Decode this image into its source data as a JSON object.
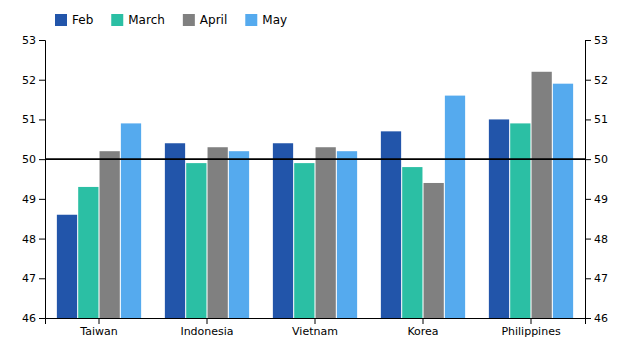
{
  "chart_data": {
    "type": "bar",
    "categories": [
      "Taiwan",
      "Indonesia",
      "Vietnam",
      "Korea",
      "Philippines"
    ],
    "series": [
      {
        "name": "Feb",
        "color": "#2255aa",
        "values": [
          48.6,
          50.4,
          50.4,
          50.7,
          51.0
        ]
      },
      {
        "name": "March",
        "color": "#2bbfa4",
        "values": [
          49.3,
          49.9,
          49.9,
          49.8,
          50.9
        ]
      },
      {
        "name": "April",
        "color": "#808080",
        "values": [
          50.2,
          50.3,
          50.3,
          49.4,
          52.2
        ]
      },
      {
        "name": "May",
        "color": "#55aaee",
        "values": [
          50.9,
          50.2,
          50.2,
          51.6,
          51.9
        ]
      }
    ],
    "ylim": [
      46,
      53
    ],
    "yticks": [
      46,
      47,
      48,
      49,
      50,
      51,
      52,
      53
    ],
    "y2lim": [
      46,
      53
    ],
    "y2ticks": [
      46,
      47,
      48,
      49,
      50,
      51,
      52,
      53
    ],
    "hline": 50,
    "grid": false,
    "legend": "upper-left"
  }
}
